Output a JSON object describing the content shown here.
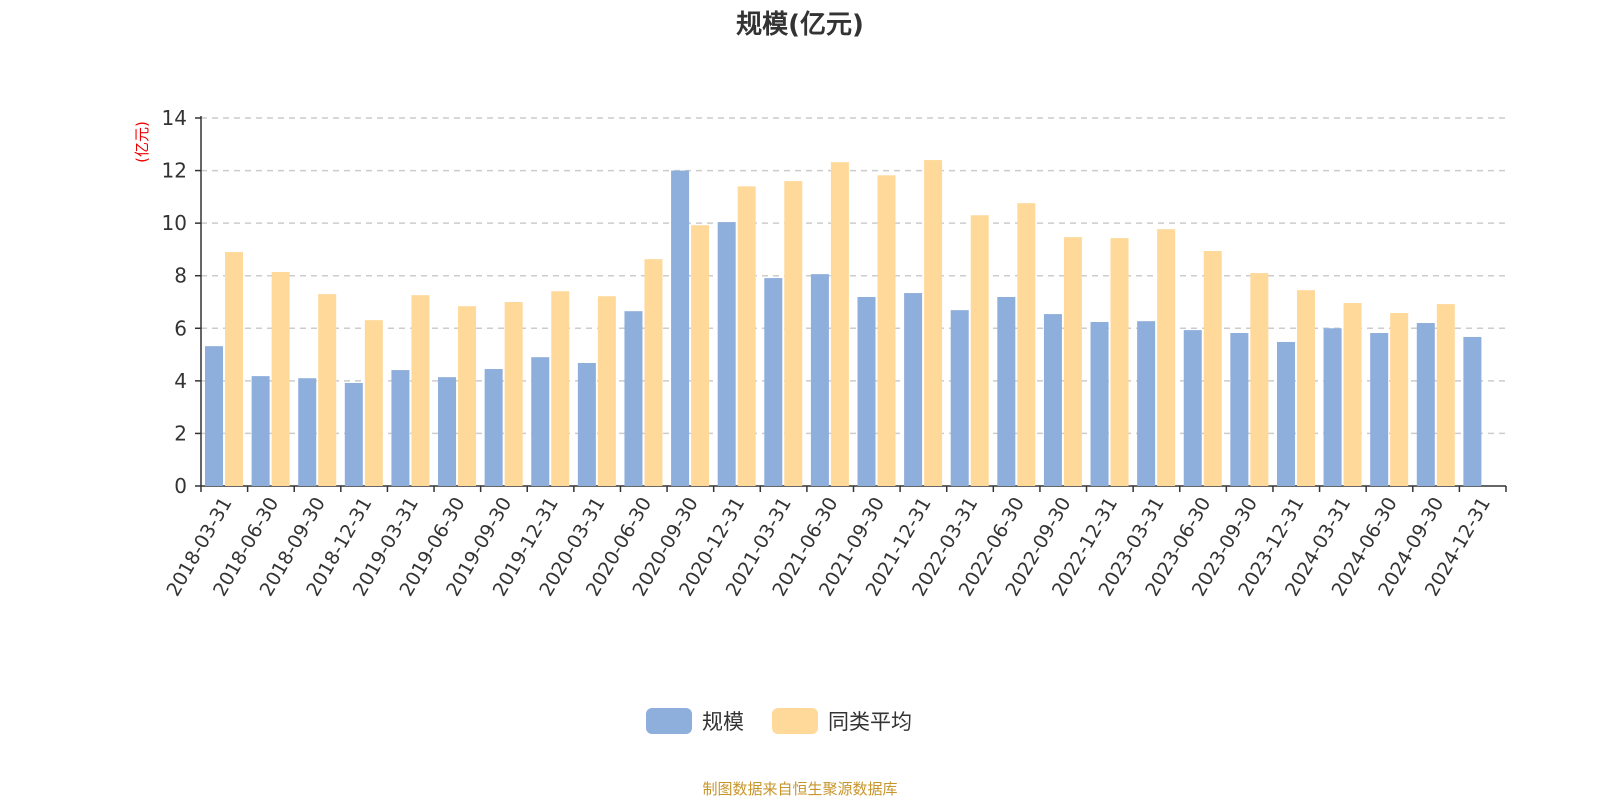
{
  "chart_data": {
    "type": "bar",
    "title": "规模(亿元)",
    "ylabel": "(亿元)",
    "ylim": [
      0,
      14
    ],
    "yticks": [
      0,
      2,
      4,
      6,
      8,
      10,
      12,
      14
    ],
    "grid": true,
    "legend_position": "bottom",
    "categories": [
      "2018-03-31",
      "2018-06-30",
      "2018-09-30",
      "2018-12-31",
      "2019-03-31",
      "2019-06-30",
      "2019-09-30",
      "2019-12-31",
      "2020-03-31",
      "2020-06-30",
      "2020-09-30",
      "2020-12-31",
      "2021-03-31",
      "2021-06-30",
      "2021-09-30",
      "2021-12-31",
      "2022-03-31",
      "2022-06-30",
      "2022-09-30",
      "2022-12-31",
      "2023-03-31",
      "2023-06-30",
      "2023-09-30",
      "2023-12-31",
      "2024-03-31",
      "2024-06-30",
      "2024-09-30",
      "2024-12-31"
    ],
    "series": [
      {
        "name": "规模",
        "color": "#8eaedb",
        "values": [
          5.32,
          4.18,
          4.1,
          3.92,
          4.41,
          4.14,
          4.45,
          4.9,
          4.68,
          6.65,
          12.0,
          10.04,
          7.91,
          8.06,
          7.19,
          7.34,
          6.69,
          7.19,
          6.54,
          6.24,
          6.27,
          5.93,
          5.82,
          5.48,
          6.0,
          5.82,
          6.2,
          5.67
        ]
      },
      {
        "name": "同类平均",
        "color": "#ffd99a",
        "values": [
          8.9,
          8.14,
          7.3,
          6.31,
          7.26,
          6.84,
          7.0,
          7.41,
          7.22,
          8.63,
          9.92,
          11.4,
          11.6,
          12.32,
          11.82,
          12.4,
          10.3,
          10.76,
          9.47,
          9.43,
          9.77,
          8.94,
          8.1,
          7.45,
          6.96,
          6.58,
          6.92,
          null
        ]
      }
    ]
  },
  "footer": "制图数据来自恒生聚源数据库"
}
